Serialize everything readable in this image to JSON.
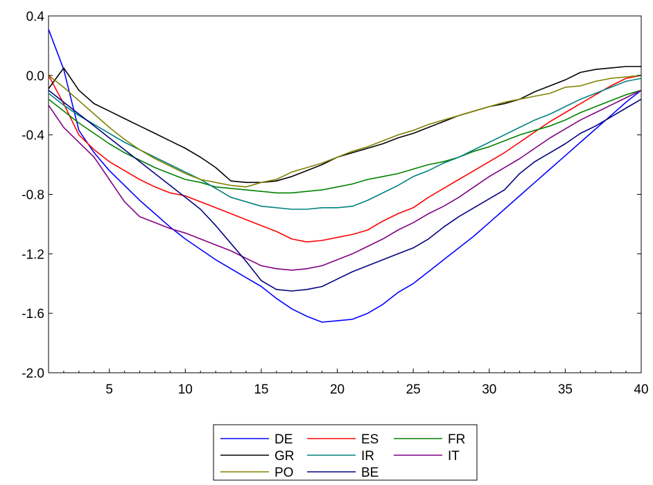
{
  "chart_data": {
    "type": "line",
    "title": "",
    "xlabel": "",
    "ylabel": "",
    "xlim": [
      1,
      40
    ],
    "ylim": [
      -2.0,
      0.4
    ],
    "xticks": [
      5,
      10,
      15,
      20,
      25,
      30,
      35,
      40
    ],
    "xtick_labels": [
      "5",
      "10",
      "15",
      "20",
      "25",
      "30",
      "35",
      "40"
    ],
    "yticks": [
      -2.0,
      -1.6,
      -1.2,
      -0.8,
      -0.4,
      0.0,
      0.4
    ],
    "ytick_labels": [
      "-2.0",
      "-1.6",
      "-1.2",
      "-0.8",
      "-0.4",
      "0.0",
      "0.4"
    ],
    "grid": false,
    "legend_position": "bottom-center",
    "x": [
      1,
      2,
      3,
      4,
      5,
      6,
      7,
      8,
      9,
      10,
      11,
      12,
      13,
      14,
      15,
      16,
      17,
      18,
      19,
      20,
      21,
      22,
      23,
      24,
      25,
      26,
      27,
      28,
      29,
      30,
      31,
      32,
      33,
      34,
      35,
      36,
      37,
      38,
      39,
      40
    ],
    "series": [
      {
        "name": "DE",
        "color": "#0000ff",
        "values": [
          0.31,
          0.04,
          -0.37,
          -0.52,
          -0.64,
          -0.74,
          -0.84,
          -0.93,
          -1.02,
          -1.1,
          -1.17,
          -1.24,
          -1.3,
          -1.36,
          -1.42,
          -1.5,
          -1.57,
          -1.62,
          -1.66,
          -1.65,
          -1.64,
          -1.6,
          -1.54,
          -1.46,
          -1.4,
          -1.32,
          -1.24,
          -1.16,
          -1.08,
          -0.99,
          -0.9,
          -0.81,
          -0.72,
          -0.63,
          -0.54,
          -0.45,
          -0.36,
          -0.27,
          -0.18,
          -0.1
        ]
      },
      {
        "name": "ES",
        "color": "#ff0000",
        "values": [
          0.0,
          -0.19,
          -0.4,
          -0.5,
          -0.58,
          -0.64,
          -0.7,
          -0.75,
          -0.79,
          -0.81,
          -0.85,
          -0.89,
          -0.93,
          -0.97,
          -1.01,
          -1.05,
          -1.1,
          -1.12,
          -1.11,
          -1.09,
          -1.07,
          -1.04,
          -0.98,
          -0.93,
          -0.89,
          -0.82,
          -0.76,
          -0.7,
          -0.64,
          -0.58,
          -0.52,
          -0.45,
          -0.38,
          -0.31,
          -0.25,
          -0.19,
          -0.13,
          -0.07,
          -0.02,
          0.0
        ]
      },
      {
        "name": "FR",
        "color": "#008000",
        "values": [
          -0.16,
          -0.24,
          -0.32,
          -0.39,
          -0.46,
          -0.52,
          -0.57,
          -0.62,
          -0.66,
          -0.7,
          -0.72,
          -0.75,
          -0.76,
          -0.77,
          -0.78,
          -0.79,
          -0.79,
          -0.78,
          -0.77,
          -0.75,
          -0.73,
          -0.7,
          -0.68,
          -0.66,
          -0.63,
          -0.6,
          -0.58,
          -0.55,
          -0.51,
          -0.48,
          -0.44,
          -0.4,
          -0.37,
          -0.34,
          -0.3,
          -0.25,
          -0.21,
          -0.17,
          -0.13,
          -0.1
        ]
      },
      {
        "name": "GR",
        "color": "#000000",
        "values": [
          -0.09,
          0.05,
          -0.1,
          -0.19,
          -0.24,
          -0.29,
          -0.34,
          -0.39,
          -0.44,
          -0.49,
          -0.55,
          -0.62,
          -0.71,
          -0.72,
          -0.72,
          -0.71,
          -0.68,
          -0.64,
          -0.6,
          -0.55,
          -0.52,
          -0.49,
          -0.46,
          -0.42,
          -0.39,
          -0.35,
          -0.31,
          -0.27,
          -0.24,
          -0.21,
          -0.19,
          -0.16,
          -0.11,
          -0.07,
          -0.03,
          0.02,
          0.04,
          0.05,
          0.06,
          0.06
        ]
      },
      {
        "name": "IR",
        "color": "#008080",
        "values": [
          -0.12,
          -0.2,
          -0.27,
          -0.33,
          -0.39,
          -0.45,
          -0.5,
          -0.55,
          -0.6,
          -0.65,
          -0.7,
          -0.76,
          -0.82,
          -0.85,
          -0.88,
          -0.89,
          -0.9,
          -0.9,
          -0.89,
          -0.89,
          -0.88,
          -0.84,
          -0.79,
          -0.74,
          -0.68,
          -0.64,
          -0.59,
          -0.55,
          -0.5,
          -0.45,
          -0.4,
          -0.35,
          -0.3,
          -0.26,
          -0.21,
          -0.16,
          -0.12,
          -0.08,
          -0.04,
          -0.02
        ]
      },
      {
        "name": "IT",
        "color": "#800080",
        "values": [
          -0.2,
          -0.35,
          -0.45,
          -0.55,
          -0.7,
          -0.85,
          -0.95,
          -0.99,
          -1.03,
          -1.06,
          -1.1,
          -1.14,
          -1.18,
          -1.23,
          -1.28,
          -1.3,
          -1.31,
          -1.3,
          -1.28,
          -1.24,
          -1.2,
          -1.15,
          -1.1,
          -1.04,
          -0.99,
          -0.93,
          -0.88,
          -0.82,
          -0.75,
          -0.68,
          -0.62,
          -0.56,
          -0.49,
          -0.42,
          -0.36,
          -0.3,
          -0.25,
          -0.2,
          -0.15,
          -0.1
        ]
      },
      {
        "name": "PO",
        "color": "#808000",
        "values": [
          0.0,
          -0.08,
          -0.17,
          -0.26,
          -0.35,
          -0.43,
          -0.5,
          -0.56,
          -0.61,
          -0.66,
          -0.7,
          -0.72,
          -0.74,
          -0.75,
          -0.72,
          -0.7,
          -0.65,
          -0.62,
          -0.59,
          -0.55,
          -0.51,
          -0.48,
          -0.44,
          -0.4,
          -0.37,
          -0.33,
          -0.3,
          -0.27,
          -0.24,
          -0.21,
          -0.18,
          -0.16,
          -0.14,
          -0.12,
          -0.08,
          -0.07,
          -0.04,
          -0.02,
          -0.01,
          0.0
        ]
      },
      {
        "name": "BE",
        "color": "#000080",
        "values": [
          -0.1,
          -0.18,
          -0.26,
          -0.34,
          -0.42,
          -0.5,
          -0.58,
          -0.66,
          -0.74,
          -0.82,
          -0.9,
          -1.01,
          -1.13,
          -1.25,
          -1.38,
          -1.44,
          -1.45,
          -1.44,
          -1.42,
          -1.37,
          -1.32,
          -1.28,
          -1.24,
          -1.2,
          -1.16,
          -1.1,
          -1.02,
          -0.95,
          -0.89,
          -0.83,
          -0.77,
          -0.66,
          -0.58,
          -0.52,
          -0.46,
          -0.39,
          -0.34,
          -0.28,
          -0.22,
          -0.16
        ]
      }
    ]
  }
}
